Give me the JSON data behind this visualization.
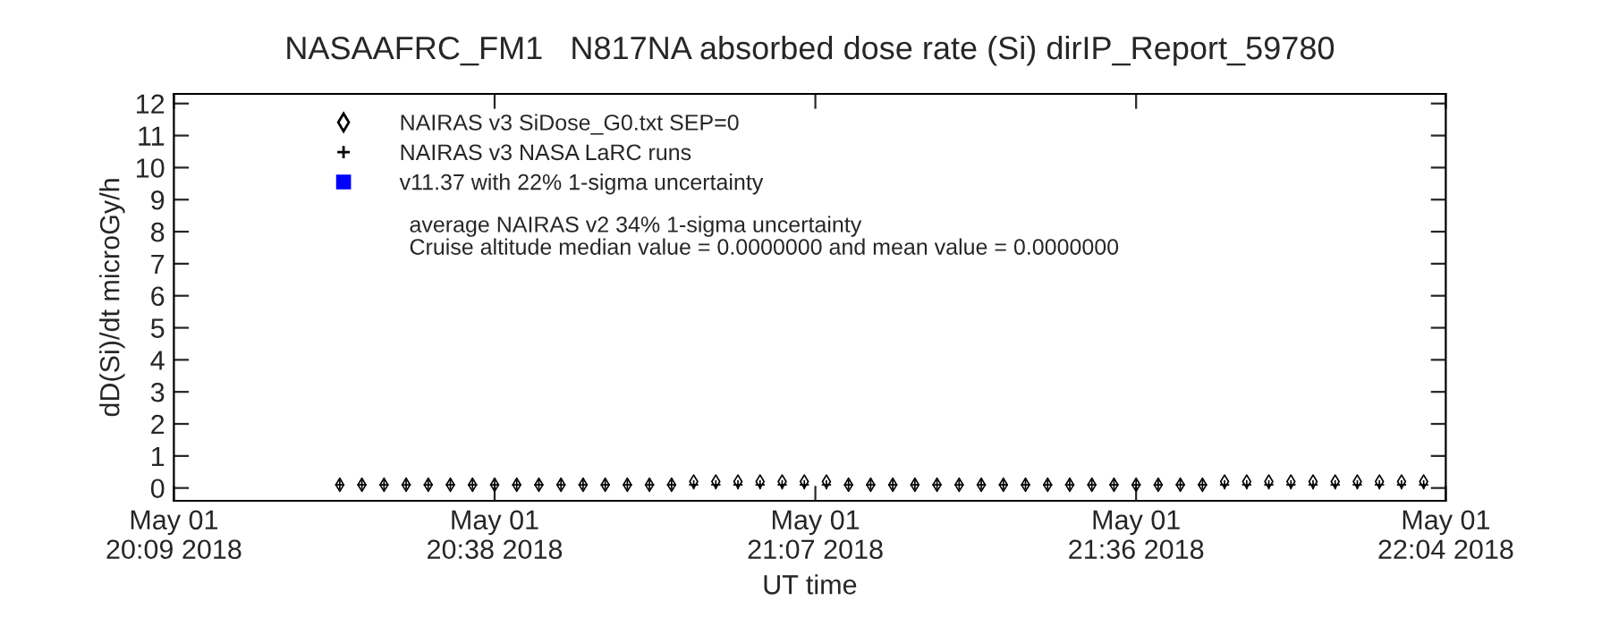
{
  "chart_data": {
    "type": "scatter",
    "title": "NASAAFRC_FM1   N817NA absorbed dose rate (Si) dirIP_Report_59780",
    "xlabel": "UT time",
    "ylabel": "dD(Si)/dt microGy/h",
    "xlim": [
      "2018-05-01T20:09",
      "2018-05-01T22:04"
    ],
    "ylim": [
      -0.4,
      12.3
    ],
    "xticks": [
      {
        "value": "2018-05-01T20:09",
        "label": "May 01\n20:09 2018"
      },
      {
        "value": "2018-05-01T20:38",
        "label": "May 01\n20:38 2018"
      },
      {
        "value": "2018-05-01T21:07",
        "label": "May 01\n21:07 2018"
      },
      {
        "value": "2018-05-01T21:36",
        "label": "May 01\n21:36 2018"
      },
      {
        "value": "2018-05-01T22:04",
        "label": "May 01\n22:04 2018"
      }
    ],
    "yticks": [
      0,
      1,
      2,
      3,
      4,
      5,
      6,
      7,
      8,
      9,
      10,
      11,
      12
    ],
    "x": [
      "2018-05-01T20:24",
      "2018-05-01T20:26",
      "2018-05-01T20:28",
      "2018-05-01T20:30",
      "2018-05-01T20:32",
      "2018-05-01T20:34",
      "2018-05-01T20:36",
      "2018-05-01T20:38",
      "2018-05-01T20:40",
      "2018-05-01T20:42",
      "2018-05-01T20:44",
      "2018-05-01T20:46",
      "2018-05-01T20:48",
      "2018-05-01T20:50",
      "2018-05-01T20:52",
      "2018-05-01T20:54",
      "2018-05-01T20:56",
      "2018-05-01T20:58",
      "2018-05-01T21:00",
      "2018-05-01T21:02",
      "2018-05-01T21:04",
      "2018-05-01T21:06",
      "2018-05-01T21:08",
      "2018-05-01T21:10",
      "2018-05-01T21:12",
      "2018-05-01T21:14",
      "2018-05-01T21:16",
      "2018-05-01T21:18",
      "2018-05-01T21:20",
      "2018-05-01T21:22",
      "2018-05-01T21:24",
      "2018-05-01T21:26",
      "2018-05-01T21:28",
      "2018-05-01T21:30",
      "2018-05-01T21:32",
      "2018-05-01T21:34",
      "2018-05-01T21:36",
      "2018-05-01T21:38",
      "2018-05-01T21:40",
      "2018-05-01T21:42",
      "2018-05-01T21:44",
      "2018-05-01T21:46",
      "2018-05-01T21:48",
      "2018-05-01T21:50",
      "2018-05-01T21:52",
      "2018-05-01T21:54",
      "2018-05-01T21:56",
      "2018-05-01T21:58",
      "2018-05-01T22:00",
      "2018-05-01T22:02"
    ],
    "series": [
      {
        "name": "NAIRAS v3 SiDose_G0.txt SEP=0",
        "color": "#000000",
        "marker": "diamond",
        "values": [
          0.1,
          0.1,
          0.1,
          0.1,
          0.1,
          0.1,
          0.1,
          0.1,
          0.1,
          0.1,
          0.1,
          0.1,
          0.1,
          0.1,
          0.1,
          0.1,
          0.2,
          0.2,
          0.2,
          0.2,
          0.2,
          0.2,
          0.2,
          0.1,
          0.1,
          0.1,
          0.1,
          0.1,
          0.1,
          0.1,
          0.1,
          0.1,
          0.1,
          0.1,
          0.1,
          0.1,
          0.1,
          0.1,
          0.1,
          0.1,
          0.2,
          0.2,
          0.2,
          0.2,
          0.2,
          0.2,
          0.2,
          0.2,
          0.2,
          0.2
        ]
      },
      {
        "name": "NAIRAS v3 NASA LaRC runs",
        "color": "#000000",
        "marker": "cross",
        "values": [
          0.1,
          0.1,
          0.1,
          0.1,
          0.1,
          0.1,
          0.1,
          0.1,
          0.1,
          0.1,
          0.1,
          0.1,
          0.1,
          0.1,
          0.1,
          0.1,
          0.1,
          0.1,
          0.1,
          0.1,
          0.1,
          0.1,
          0.1,
          0.1,
          0.1,
          0.1,
          0.1,
          0.1,
          0.1,
          0.1,
          0.1,
          0.1,
          0.1,
          0.1,
          0.1,
          0.1,
          0.1,
          0.1,
          0.1,
          0.1,
          0.1,
          0.1,
          0.1,
          0.1,
          0.1,
          0.1,
          0.1,
          0.1,
          0.1,
          0.1
        ]
      },
      {
        "name": "v11.37 with 22% 1-sigma uncertainty",
        "color": "#0000ff",
        "marker": "square",
        "values": [
          null,
          null,
          null,
          null,
          null,
          null,
          null,
          null,
          null,
          null,
          null,
          null,
          null,
          null,
          null,
          null,
          null,
          null,
          null,
          null,
          null,
          null,
          null,
          null,
          null,
          null,
          null,
          null,
          null,
          null,
          null,
          null,
          null,
          null,
          null,
          null,
          null,
          null,
          null,
          null,
          null,
          null,
          null,
          null,
          null,
          null,
          null,
          null,
          null,
          null
        ]
      }
    ],
    "annotations": [
      "average NAIRAS v2 34% 1-sigma uncertainty",
      "Cruise altitude median value = 0.0000000 and mean value = 0.0000000"
    ],
    "legend": "top left",
    "grid": false
  }
}
